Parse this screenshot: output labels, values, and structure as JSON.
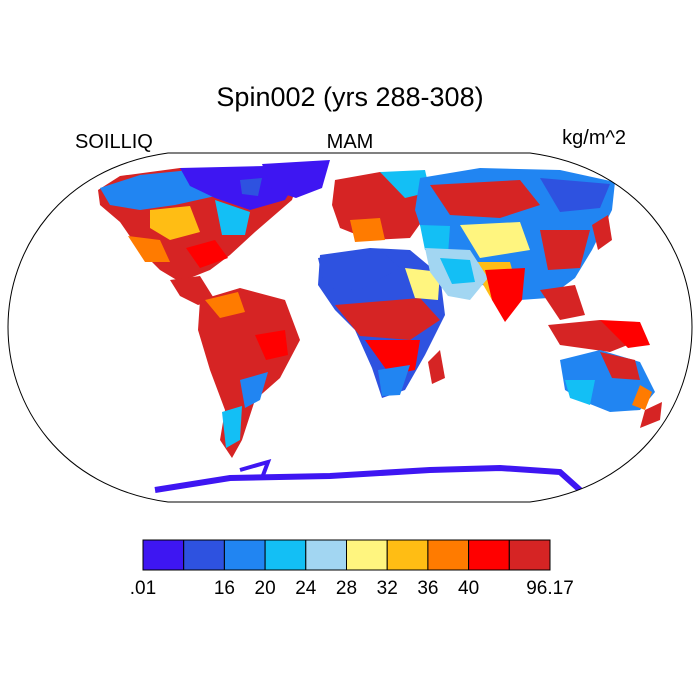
{
  "title": "Spin002 (yrs 288-308)",
  "left_label": "SOILLIQ",
  "center_label": "MAM",
  "right_label": "kg/m^2",
  "colorbar": {
    "colors": [
      "#3e16f2",
      "#2e52e0",
      "#2185f2",
      "#13bff5",
      "#a2d6f2",
      "#fff57f",
      "#ffbd14",
      "#ff7b00",
      "#ff0000",
      "#d62424"
    ],
    "labels": [
      ".01",
      "",
      "16",
      "20",
      "24",
      "28",
      "32",
      "36",
      "40",
      "",
      "96.17"
    ]
  },
  "chart_data": {
    "type": "heatmap",
    "title": "Spin002 (yrs 288-308)",
    "variable": "SOILLIQ",
    "season": "MAM",
    "units": "kg/m^2",
    "range": [
      0.01,
      96.17
    ]
  }
}
